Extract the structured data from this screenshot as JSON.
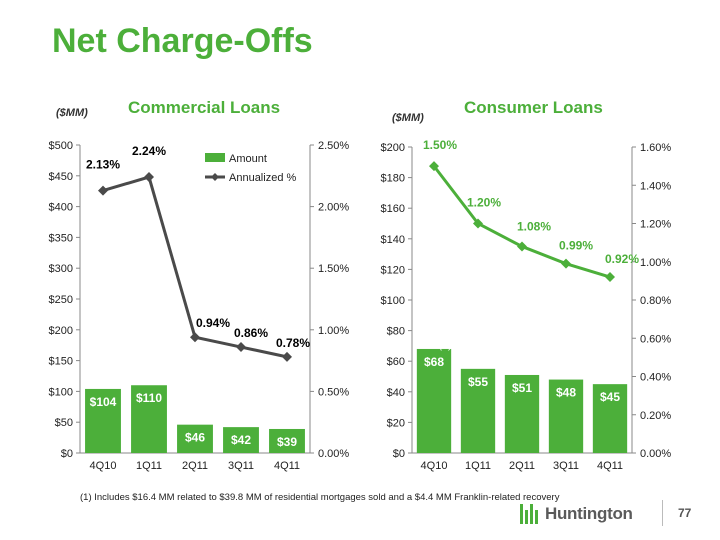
{
  "page": {
    "title": "Net Charge-Offs",
    "footnote": "(1)   Includes $16.4 MM related to $39.8 MM of residential mortgages sold and a $4.4 MM Franklin-related recovery",
    "page_number": "77",
    "logo_text": "Huntington",
    "accent_color": "#4caf3a",
    "line_color": "#4a4a4a"
  },
  "chart_data": [
    {
      "type": "bar",
      "title": "Commercial Loans",
      "unit_label": "($MM)",
      "categories": [
        "4Q10",
        "1Q11",
        "2Q11",
        "3Q11",
        "4Q11"
      ],
      "ylim": [
        0,
        500
      ],
      "yticks": [
        "$0",
        "$50",
        "$100",
        "$150",
        "$200",
        "$250",
        "$300",
        "$350",
        "$400",
        "$450",
        "$500"
      ],
      "y2lim": [
        0,
        2.5
      ],
      "y2ticks": [
        "0.00%",
        "0.50%",
        "1.00%",
        "1.50%",
        "2.00%",
        "2.50%"
      ],
      "legend": {
        "position": "top-right",
        "entries": [
          "Amount",
          "Annualized %"
        ]
      },
      "series": [
        {
          "name": "Amount",
          "type": "bar",
          "values": [
            104,
            110,
            46,
            42,
            39
          ],
          "labels": [
            "$104",
            "$110",
            "$46",
            "$42",
            "$39"
          ]
        },
        {
          "name": "Annualized %",
          "type": "line",
          "axis": "right",
          "values": [
            2.13,
            2.24,
            0.94,
            0.86,
            0.78
          ],
          "labels": [
            "2.13%",
            "2.24%",
            "0.94%",
            "0.86%",
            "0.78%"
          ]
        }
      ]
    },
    {
      "type": "bar",
      "title": "Consumer Loans",
      "unit_label": "($MM)",
      "categories": [
        "4Q10",
        "1Q11",
        "2Q11",
        "3Q11",
        "4Q11"
      ],
      "ylim": [
        0,
        200
      ],
      "yticks": [
        "$0",
        "$20",
        "$40",
        "$60",
        "$80",
        "$100",
        "$120",
        "$140",
        "$160",
        "$180",
        "$200"
      ],
      "y2lim": [
        0,
        1.6
      ],
      "y2ticks": [
        "0.00%",
        "0.20%",
        "0.40%",
        "0.60%",
        "0.80%",
        "1.00%",
        "1.20%",
        "1.40%",
        "1.60%"
      ],
      "annotation": "(1)",
      "series": [
        {
          "type": "bar",
          "values": [
            68,
            55,
            51,
            48,
            45
          ],
          "labels": [
            "$68",
            "$55",
            "$51",
            "$48",
            "$45"
          ]
        },
        {
          "type": "line",
          "axis": "right",
          "values": [
            1.5,
            1.2,
            1.08,
            0.99,
            0.92
          ],
          "labels": [
            "1.50%",
            "1.20%",
            "1.08%",
            "0.99%",
            "0.92%"
          ]
        }
      ]
    }
  ]
}
